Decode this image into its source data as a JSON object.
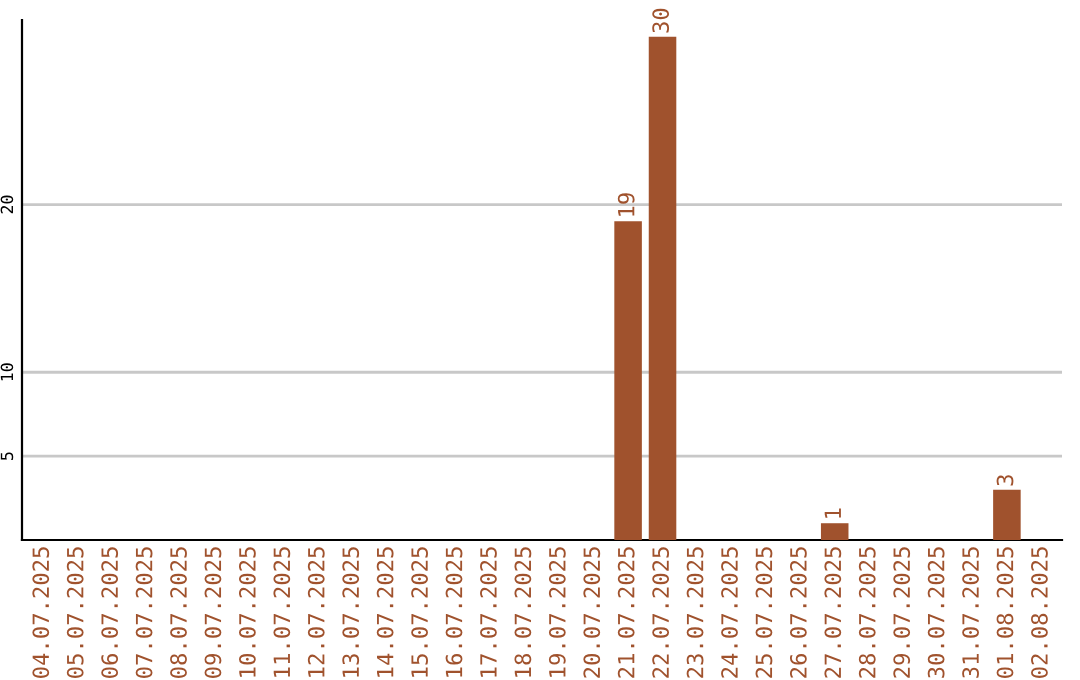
{
  "chart_data": {
    "type": "bar",
    "categories": [
      "04.07.2025",
      "05.07.2025",
      "06.07.2025",
      "07.07.2025",
      "08.07.2025",
      "09.07.2025",
      "10.07.2025",
      "11.07.2025",
      "12.07.2025",
      "13.07.2025",
      "14.07.2025",
      "15.07.2025",
      "16.07.2025",
      "17.07.2025",
      "18.07.2025",
      "19.07.2025",
      "20.07.2025",
      "21.07.2025",
      "22.07.2025",
      "23.07.2025",
      "24.07.2025",
      "25.07.2025",
      "26.07.2025",
      "27.07.2025",
      "28.07.2025",
      "29.07.2025",
      "30.07.2025",
      "31.07.2025",
      "01.08.2025",
      "02.08.2025"
    ],
    "values": [
      0,
      0,
      0,
      0,
      0,
      0,
      0,
      0,
      0,
      0,
      0,
      0,
      0,
      0,
      0,
      0,
      0,
      19,
      30,
      0,
      0,
      0,
      0,
      1,
      0,
      0,
      0,
      0,
      3,
      0
    ],
    "value_labels": [
      null,
      null,
      null,
      null,
      null,
      null,
      null,
      null,
      null,
      null,
      null,
      null,
      null,
      null,
      null,
      null,
      null,
      "19",
      "30",
      null,
      null,
      null,
      null,
      "1",
      null,
      null,
      null,
      null,
      "3",
      null
    ],
    "color": "#a0522d",
    "ylim": [
      0,
      31
    ],
    "yticks": [
      5,
      10,
      20
    ],
    "grid": "y",
    "legend": false
  }
}
